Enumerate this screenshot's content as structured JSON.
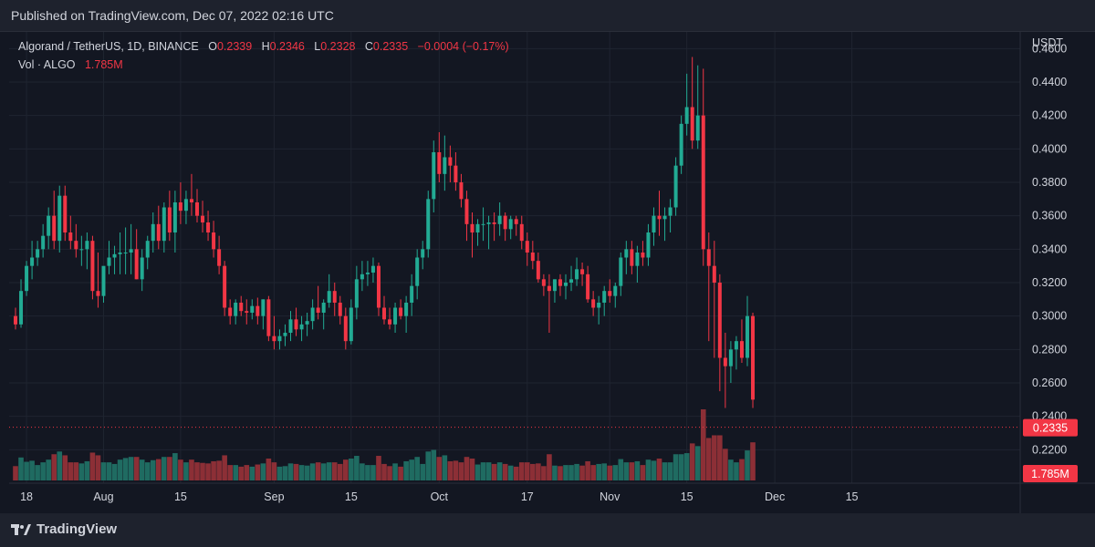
{
  "header": {
    "published": "Published on TradingView.com, Dec 07, 2022 02:16 UTC"
  },
  "legend": {
    "symbol": "Algorand / TetherUS, 1D, BINANCE",
    "o_label": "O",
    "o_value": "0.2339",
    "h_label": "H",
    "h_value": "0.2346",
    "l_label": "L",
    "l_value": "0.2328",
    "c_label": "C",
    "c_value": "0.2335",
    "change": "−0.0004 (−0.17%)",
    "vol_label": "Vol · ALGO",
    "vol_value": "1.785M"
  },
  "footer": {
    "brand": "TradingView"
  },
  "colors": {
    "up": "#22ab94",
    "down": "#f23645",
    "vol_up": "#1f6b61",
    "vol_down": "#8c2f36",
    "background": "#131722",
    "grid": "#1f2430",
    "axis_text": "#d1d4dc"
  },
  "chart_data": {
    "type": "candlestick",
    "symbol": "ALGO/USDT",
    "interval": "1D",
    "exchange": "BINANCE",
    "y_axis": {
      "unit": "USDT",
      "range": [
        0.2,
        0.47
      ],
      "ticks": [
        "0.2200",
        "0.2400",
        "0.2600",
        "0.2800",
        "0.3000",
        "0.3200",
        "0.3400",
        "0.3600",
        "0.3800",
        "0.4000",
        "0.4200",
        "0.4400",
        "0.4600"
      ]
    },
    "x_axis": {
      "ticks": [
        {
          "label": "18",
          "i": 2
        },
        {
          "label": "Aug",
          "i": 16
        },
        {
          "label": "15",
          "i": 30
        },
        {
          "label": "Sep",
          "i": 47
        },
        {
          "label": "15",
          "i": 61
        },
        {
          "label": "Oct",
          "i": 77
        },
        {
          "label": "17",
          "i": 93
        },
        {
          "label": "Nov",
          "i": 108
        },
        {
          "label": "15",
          "i": 122
        },
        {
          "label": "Dec",
          "i": 138
        },
        {
          "label": "15",
          "i": 152
        }
      ]
    },
    "last_price": "0.2335",
    "last_volume": "1.785M",
    "candles": [
      [
        0.3,
        0.305,
        0.292,
        0.295
      ],
      [
        0.295,
        0.322,
        0.293,
        0.315
      ],
      [
        0.315,
        0.333,
        0.312,
        0.33
      ],
      [
        0.33,
        0.345,
        0.322,
        0.335
      ],
      [
        0.335,
        0.345,
        0.33,
        0.34
      ],
      [
        0.34,
        0.355,
        0.335,
        0.348
      ],
      [
        0.348,
        0.365,
        0.34,
        0.36
      ],
      [
        0.36,
        0.375,
        0.34,
        0.345
      ],
      [
        0.345,
        0.378,
        0.338,
        0.372
      ],
      [
        0.372,
        0.378,
        0.345,
        0.35
      ],
      [
        0.35,
        0.36,
        0.34,
        0.345
      ],
      [
        0.345,
        0.355,
        0.335,
        0.34
      ],
      [
        0.34,
        0.348,
        0.33,
        0.34
      ],
      [
        0.34,
        0.35,
        0.328,
        0.345
      ],
      [
        0.345,
        0.348,
        0.31,
        0.315
      ],
      [
        0.315,
        0.338,
        0.305,
        0.312
      ],
      [
        0.312,
        0.328,
        0.308,
        0.33
      ],
      [
        0.33,
        0.345,
        0.325,
        0.335
      ],
      [
        0.335,
        0.342,
        0.325,
        0.337
      ],
      [
        0.337,
        0.35,
        0.325,
        0.338
      ],
      [
        0.338,
        0.353,
        0.325,
        0.338
      ],
      [
        0.338,
        0.355,
        0.325,
        0.34
      ],
      [
        0.34,
        0.352,
        0.322,
        0.322
      ],
      [
        0.322,
        0.34,
        0.315,
        0.335
      ],
      [
        0.335,
        0.348,
        0.328,
        0.345
      ],
      [
        0.345,
        0.362,
        0.338,
        0.355
      ],
      [
        0.355,
        0.366,
        0.34,
        0.345
      ],
      [
        0.345,
        0.368,
        0.338,
        0.365
      ],
      [
        0.365,
        0.375,
        0.345,
        0.35
      ],
      [
        0.35,
        0.375,
        0.338,
        0.368
      ],
      [
        0.368,
        0.38,
        0.355,
        0.363
      ],
      [
        0.363,
        0.375,
        0.355,
        0.37
      ],
      [
        0.37,
        0.385,
        0.36,
        0.368
      ],
      [
        0.368,
        0.376,
        0.356,
        0.36
      ],
      [
        0.36,
        0.369,
        0.35,
        0.356
      ],
      [
        0.356,
        0.363,
        0.345,
        0.35
      ],
      [
        0.35,
        0.357,
        0.335,
        0.34
      ],
      [
        0.34,
        0.348,
        0.325,
        0.33
      ],
      [
        0.33,
        0.333,
        0.3,
        0.305
      ],
      [
        0.305,
        0.31,
        0.295,
        0.3
      ],
      [
        0.3,
        0.31,
        0.295,
        0.308
      ],
      [
        0.308,
        0.312,
        0.3,
        0.303
      ],
      [
        0.303,
        0.31,
        0.295,
        0.302
      ],
      [
        0.302,
        0.31,
        0.298,
        0.306
      ],
      [
        0.306,
        0.311,
        0.295,
        0.3
      ],
      [
        0.3,
        0.31,
        0.292,
        0.31
      ],
      [
        0.31,
        0.312,
        0.285,
        0.288
      ],
      [
        0.288,
        0.3,
        0.28,
        0.285
      ],
      [
        0.285,
        0.292,
        0.28,
        0.288
      ],
      [
        0.288,
        0.295,
        0.282,
        0.29
      ],
      [
        0.29,
        0.303,
        0.285,
        0.298
      ],
      [
        0.298,
        0.305,
        0.288,
        0.292
      ],
      [
        0.292,
        0.3,
        0.285,
        0.295
      ],
      [
        0.295,
        0.302,
        0.288,
        0.297
      ],
      [
        0.297,
        0.31,
        0.292,
        0.305
      ],
      [
        0.305,
        0.318,
        0.298,
        0.302
      ],
      [
        0.302,
        0.31,
        0.292,
        0.308
      ],
      [
        0.308,
        0.325,
        0.305,
        0.315
      ],
      [
        0.315,
        0.32,
        0.3,
        0.308
      ],
      [
        0.308,
        0.312,
        0.295,
        0.3
      ],
      [
        0.3,
        0.305,
        0.28,
        0.285
      ],
      [
        0.285,
        0.31,
        0.283,
        0.305
      ],
      [
        0.305,
        0.33,
        0.298,
        0.322
      ],
      [
        0.322,
        0.333,
        0.315,
        0.325
      ],
      [
        0.325,
        0.333,
        0.318,
        0.326
      ],
      [
        0.326,
        0.335,
        0.32,
        0.33
      ],
      [
        0.33,
        0.332,
        0.3,
        0.305
      ],
      [
        0.305,
        0.312,
        0.295,
        0.298
      ],
      [
        0.298,
        0.305,
        0.292,
        0.295
      ],
      [
        0.295,
        0.308,
        0.29,
        0.305
      ],
      [
        0.305,
        0.31,
        0.298,
        0.3
      ],
      [
        0.3,
        0.312,
        0.29,
        0.308
      ],
      [
        0.308,
        0.325,
        0.3,
        0.318
      ],
      [
        0.318,
        0.34,
        0.31,
        0.335
      ],
      [
        0.335,
        0.345,
        0.328,
        0.34
      ],
      [
        0.34,
        0.375,
        0.335,
        0.37
      ],
      [
        0.37,
        0.405,
        0.362,
        0.398
      ],
      [
        0.398,
        0.41,
        0.38,
        0.385
      ],
      [
        0.385,
        0.408,
        0.375,
        0.395
      ],
      [
        0.395,
        0.402,
        0.38,
        0.39
      ],
      [
        0.39,
        0.398,
        0.375,
        0.38
      ],
      [
        0.38,
        0.385,
        0.365,
        0.37
      ],
      [
        0.37,
        0.375,
        0.345,
        0.355
      ],
      [
        0.355,
        0.362,
        0.335,
        0.35
      ],
      [
        0.35,
        0.358,
        0.342,
        0.355
      ],
      [
        0.355,
        0.365,
        0.345,
        0.355
      ],
      [
        0.355,
        0.36,
        0.34,
        0.356
      ],
      [
        0.356,
        0.362,
        0.345,
        0.355
      ],
      [
        0.355,
        0.368,
        0.348,
        0.36
      ],
      [
        0.36,
        0.362,
        0.345,
        0.352
      ],
      [
        0.352,
        0.36,
        0.346,
        0.358
      ],
      [
        0.358,
        0.36,
        0.348,
        0.355
      ],
      [
        0.355,
        0.36,
        0.34,
        0.345
      ],
      [
        0.345,
        0.35,
        0.33,
        0.338
      ],
      [
        0.338,
        0.345,
        0.328,
        0.333
      ],
      [
        0.333,
        0.338,
        0.32,
        0.322
      ],
      [
        0.322,
        0.325,
        0.312,
        0.318
      ],
      [
        0.318,
        0.325,
        0.29,
        0.315
      ],
      [
        0.315,
        0.322,
        0.308,
        0.322
      ],
      [
        0.322,
        0.325,
        0.312,
        0.318
      ],
      [
        0.318,
        0.325,
        0.31,
        0.32
      ],
      [
        0.32,
        0.33,
        0.315,
        0.322
      ],
      [
        0.322,
        0.335,
        0.318,
        0.328
      ],
      [
        0.328,
        0.332,
        0.318,
        0.325
      ],
      [
        0.325,
        0.33,
        0.308,
        0.31
      ],
      [
        0.31,
        0.315,
        0.3,
        0.305
      ],
      [
        0.305,
        0.312,
        0.295,
        0.308
      ],
      [
        0.308,
        0.318,
        0.3,
        0.315
      ],
      [
        0.315,
        0.322,
        0.308,
        0.312
      ],
      [
        0.312,
        0.32,
        0.305,
        0.318
      ],
      [
        0.318,
        0.338,
        0.312,
        0.335
      ],
      [
        0.335,
        0.345,
        0.325,
        0.34
      ],
      [
        0.34,
        0.345,
        0.325,
        0.33
      ],
      [
        0.33,
        0.342,
        0.32,
        0.338
      ],
      [
        0.338,
        0.345,
        0.33,
        0.335
      ],
      [
        0.335,
        0.355,
        0.33,
        0.35
      ],
      [
        0.35,
        0.365,
        0.342,
        0.36
      ],
      [
        0.36,
        0.375,
        0.348,
        0.358
      ],
      [
        0.358,
        0.365,
        0.345,
        0.36
      ],
      [
        0.36,
        0.37,
        0.35,
        0.365
      ],
      [
        0.365,
        0.395,
        0.36,
        0.39
      ],
      [
        0.39,
        0.42,
        0.385,
        0.415
      ],
      [
        0.415,
        0.445,
        0.408,
        0.425
      ],
      [
        0.425,
        0.455,
        0.4,
        0.405
      ],
      [
        0.405,
        0.45,
        0.4,
        0.42
      ],
      [
        0.42,
        0.448,
        0.33,
        0.34
      ],
      [
        0.34,
        0.35,
        0.285,
        0.33
      ],
      [
        0.33,
        0.345,
        0.275,
        0.32
      ],
      [
        0.32,
        0.325,
        0.255,
        0.275
      ],
      [
        0.275,
        0.29,
        0.245,
        0.27
      ],
      [
        0.27,
        0.285,
        0.26,
        0.28
      ],
      [
        0.28,
        0.288,
        0.268,
        0.285
      ],
      [
        0.285,
        0.298,
        0.272,
        0.275
      ],
      [
        0.275,
        0.312,
        0.27,
        0.3
      ],
      [
        0.3,
        0.302,
        0.245,
        0.25
      ]
    ]
  }
}
